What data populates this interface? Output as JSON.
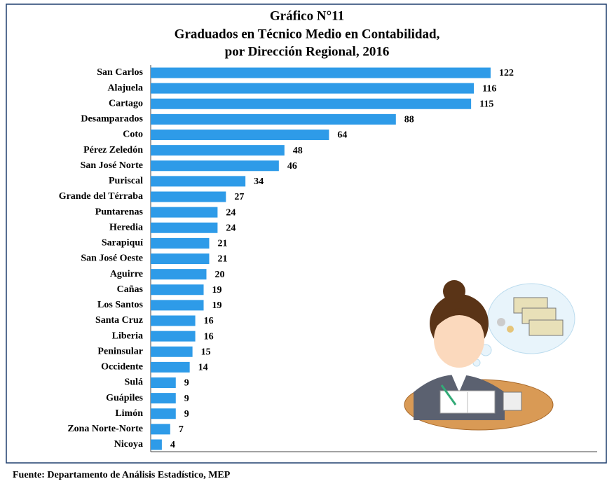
{
  "chart_data": {
    "type": "bar",
    "orientation": "horizontal",
    "title": [
      "Gráfico N°11",
      "Graduados en Técnico Medio en Contabilidad,",
      "por Dirección Regional, 2016"
    ],
    "categories": [
      "San Carlos",
      "Alajuela",
      "Cartago",
      "Desamparados",
      "Coto",
      "Pérez Zeledón",
      "San José Norte",
      "Puriscal",
      "Grande del Térraba",
      "Puntarenas",
      "Heredia",
      "Sarapiquí",
      "San José Oeste",
      "Aguirre",
      "Cañas",
      "Los Santos",
      "Santa Cruz",
      "Liberia",
      "Peninsular",
      "Occidente",
      "Sulá",
      "Guápiles",
      "Limón",
      "Zona Norte-Norte",
      "Nicoya"
    ],
    "values": [
      122,
      116,
      115,
      88,
      64,
      48,
      46,
      34,
      27,
      24,
      24,
      21,
      21,
      20,
      19,
      19,
      16,
      16,
      15,
      14,
      9,
      9,
      9,
      7,
      4
    ],
    "color": "#2e9be8",
    "xlim": [
      0,
      160
    ],
    "source": "Fuente: Departamento de Análisis Estadístico, MEP"
  }
}
